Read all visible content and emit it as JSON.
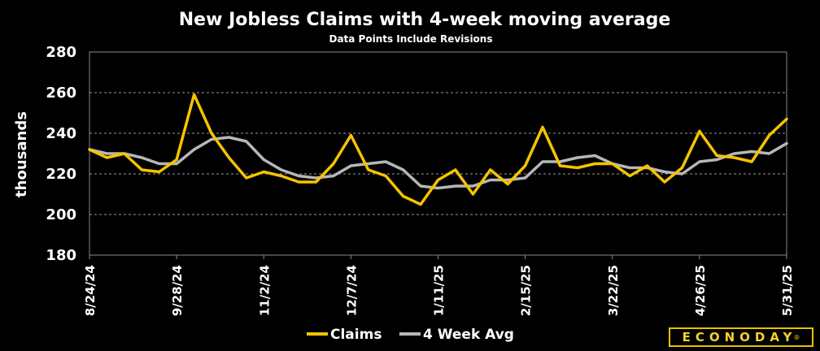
{
  "chart_data": {
    "type": "line",
    "title": "New Jobless Claims with 4-week moving average",
    "subtitle": "Data Points Include Revisions",
    "ylabel": "thousands",
    "xlabel": "",
    "ylim": [
      180,
      280
    ],
    "yticks": [
      180,
      200,
      220,
      240,
      260,
      280
    ],
    "grid": "horizontal dashed",
    "legend_position": "bottom",
    "x": [
      "8/24/24",
      "8/31/24",
      "9/7/24",
      "9/14/24",
      "9/21/24",
      "9/28/24",
      "10/5/24",
      "10/12/24",
      "10/19/24",
      "10/26/24",
      "11/2/24",
      "11/9/24",
      "11/16/24",
      "11/23/24",
      "11/30/24",
      "12/7/24",
      "12/14/24",
      "12/21/24",
      "12/28/24",
      "1/4/25",
      "1/11/25",
      "1/18/25",
      "1/25/25",
      "2/1/25",
      "2/8/25",
      "2/15/25",
      "2/22/25",
      "3/1/25",
      "3/8/25",
      "3/15/25",
      "3/22/25",
      "3/29/25",
      "4/5/25",
      "4/12/25",
      "4/19/25",
      "4/26/25",
      "5/3/25",
      "5/10/25",
      "5/17/25",
      "5/24/25",
      "5/31/25"
    ],
    "x_tick_labels": [
      "8/24/24",
      "9/28/24",
      "11/2/24",
      "12/7/24",
      "1/11/25",
      "2/15/25",
      "3/22/25",
      "4/26/25",
      "5/31/25"
    ],
    "series": [
      {
        "name": "Claims",
        "color": "#f5c400",
        "values": [
          232,
          228,
          230,
          222,
          221,
          227,
          259,
          240,
          228,
          218,
          221,
          219,
          216,
          216,
          225,
          239,
          222,
          219,
          209,
          205,
          217,
          222,
          210,
          222,
          215,
          224,
          243,
          224,
          223,
          225,
          225,
          219,
          224,
          216,
          223,
          241,
          229,
          228,
          226,
          239,
          247
        ]
      },
      {
        "name": "4 Week Avg",
        "color": "#b7b7b7",
        "values": [
          232,
          230,
          230,
          228,
          225,
          225,
          232,
          237,
          238,
          236,
          227,
          222,
          219,
          218,
          219,
          224,
          225,
          226,
          222,
          214,
          213,
          214,
          214,
          217,
          217,
          218,
          226,
          226,
          228,
          229,
          225,
          223,
          223,
          221,
          220,
          226,
          227,
          230,
          231,
          230,
          235
        ]
      }
    ]
  },
  "brand": {
    "logo_text": "ECONODAY",
    "reg_mark": "®"
  }
}
